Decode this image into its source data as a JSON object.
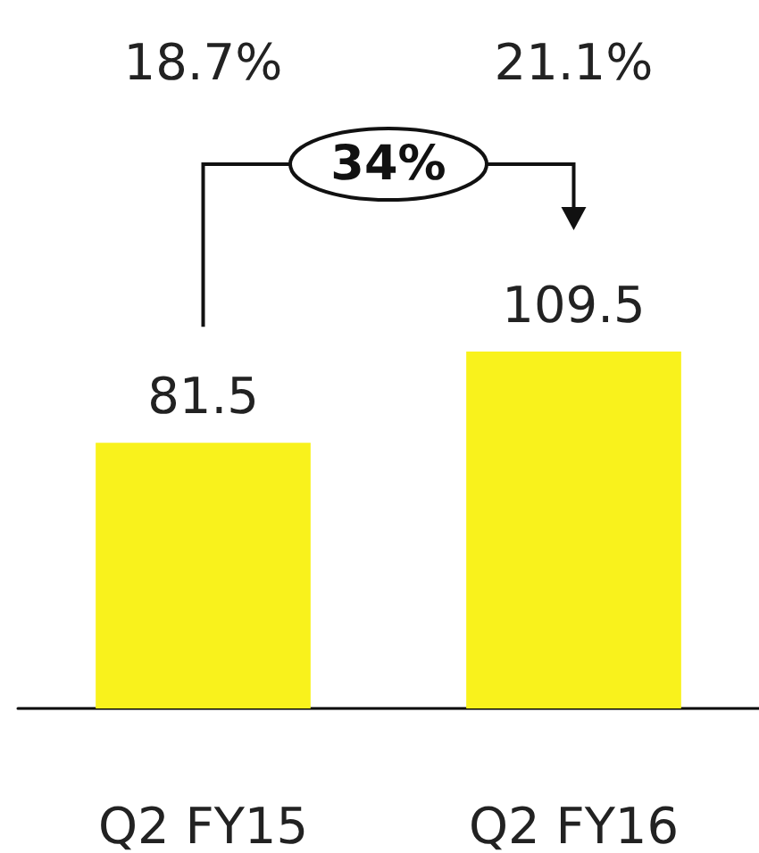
{
  "chart_data": {
    "type": "bar",
    "categories": [
      "Q2 FY15",
      "Q2 FY16"
    ],
    "values": [
      81.5,
      109.5
    ],
    "color": "#f9f21c",
    "data_labels": true,
    "annotations": [
      "18.7%",
      "21.1%",
      "34%"
    ]
  }
}
